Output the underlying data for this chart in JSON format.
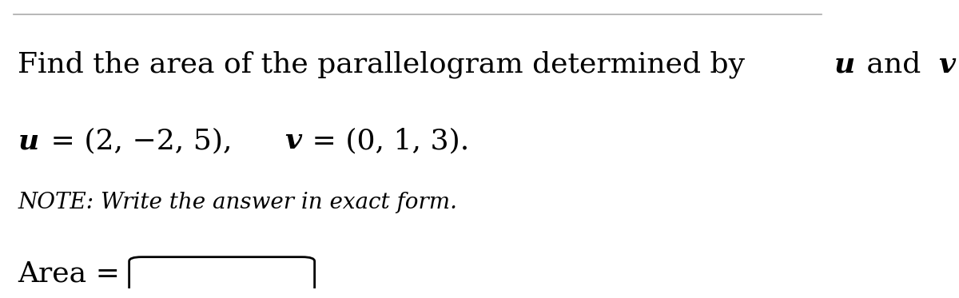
{
  "line1": "Find the area of the parallelogram determined by ",
  "line1_u": "u",
  "line1_mid": " and ",
  "line1_v": "v",
  "line1_end": ".",
  "line2_u": "u",
  "line2_eq": " = (2, −2, 5),  ",
  "line2_v": "v",
  "line2_eq2": " = (0, 1, 3).",
  "note": "NOTE: Write the answer in exact form.",
  "area_label": "Area = ",
  "background_color": "#ffffff",
  "text_color": "#000000",
  "border_color": "#000000",
  "top_line_color": "#aaaaaa",
  "font_size_line1": 26,
  "font_size_line2": 26,
  "font_size_note": 20,
  "font_size_area": 26
}
